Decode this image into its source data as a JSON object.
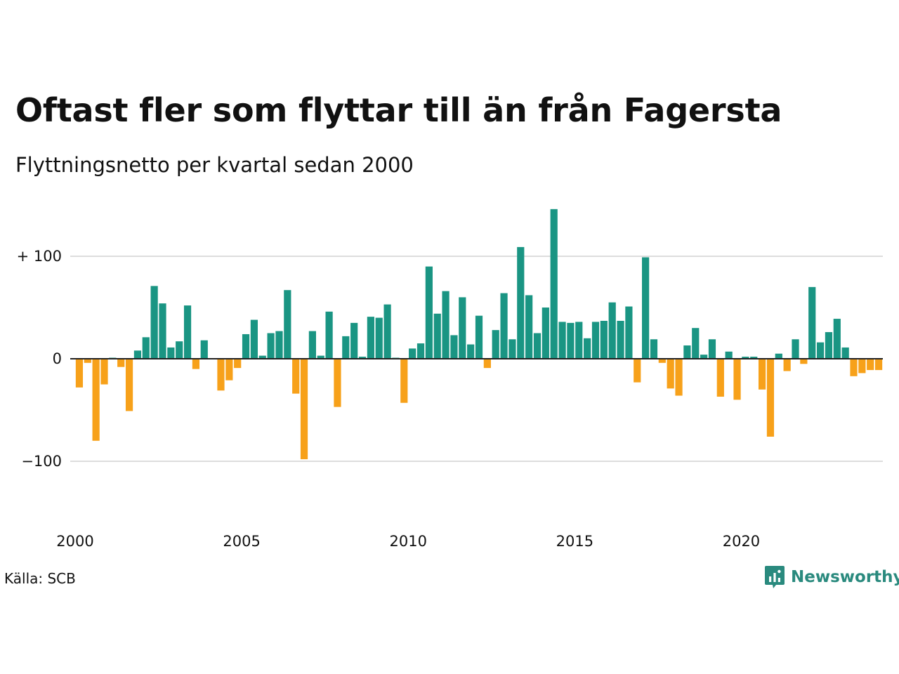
{
  "title": "Oftast fler som flyttar till än från Fagersta",
  "subtitle": "Flyttningsnetto per kvartal sedan 2000",
  "source": "Källa: SCB",
  "brand": "Newsworthy",
  "colors": {
    "positive": "#1a9583",
    "negative": "#f7a11a",
    "grid": "#dddddd",
    "zero": "#222222",
    "brand": "#2a8a7e"
  },
  "chart_data": {
    "type": "bar",
    "title": "Oftast fler som flyttar till än från Fagersta",
    "subtitle": "Flyttningsnetto per kvartal sedan 2000",
    "xlabel": "",
    "ylabel": "",
    "ylim": [
      -150,
      150
    ],
    "yticks": [
      {
        "value": 100,
        "label": "+ 100"
      },
      {
        "value": 0,
        "label": "0"
      },
      {
        "value": -100,
        "label": "−100"
      }
    ],
    "xticks": [
      {
        "value": 2000,
        "label": "2000"
      },
      {
        "value": 2005,
        "label": "2005"
      },
      {
        "value": 2010,
        "label": "2010"
      },
      {
        "value": 2015,
        "label": "2015"
      },
      {
        "value": 2020,
        "label": "2020"
      }
    ],
    "grid": true,
    "x_start": 2000,
    "periods_per_year": 4,
    "values": [
      -28,
      -4,
      -80,
      -25,
      1,
      -8,
      -51,
      8,
      21,
      71,
      54,
      11,
      17,
      52,
      -10,
      18,
      0,
      -31,
      -21,
      -9,
      24,
      38,
      3,
      25,
      27,
      67,
      -34,
      -98,
      27,
      3,
      46,
      -47,
      22,
      35,
      2,
      41,
      40,
      53,
      1,
      -43,
      10,
      15,
      90,
      44,
      66,
      23,
      60,
      14,
      42,
      -9,
      28,
      64,
      19,
      109,
      62,
      25,
      50,
      146,
      36,
      35,
      36,
      20,
      36,
      37,
      55,
      37,
      51,
      -23,
      99,
      19,
      -4,
      -29,
      -36,
      13,
      30,
      4,
      19,
      -37,
      7,
      -40,
      2,
      2,
      -30,
      -76,
      5,
      -12,
      19,
      -5,
      70,
      16,
      26,
      39,
      11,
      -17,
      -14,
      -11,
      -11
    ]
  }
}
